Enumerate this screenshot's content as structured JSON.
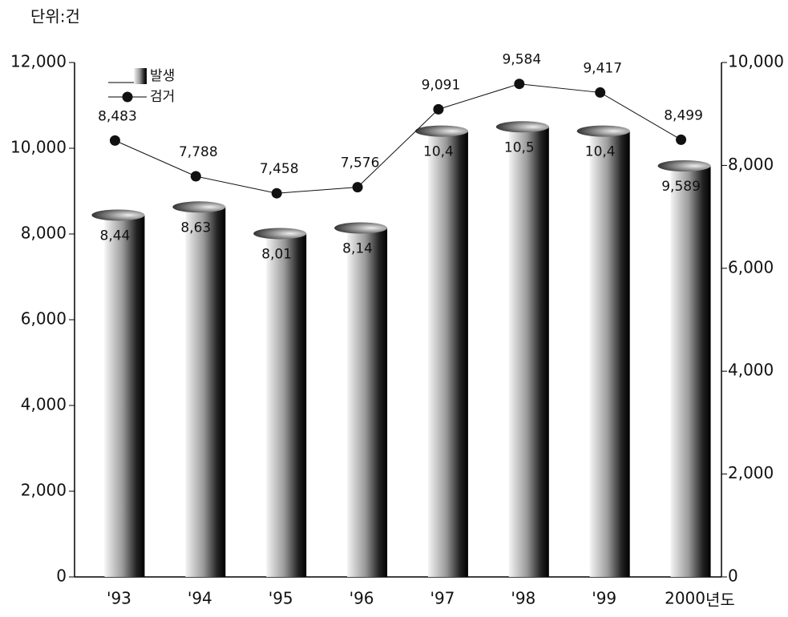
{
  "chart_data": {
    "type": "bar",
    "unit_label": "단위:건",
    "x_label": "년도",
    "categories": [
      "'93",
      "'94",
      "'95",
      "'96",
      "'97",
      "'98",
      "'99",
      "2000"
    ],
    "series": [
      {
        "name": "발생",
        "type": "bar",
        "color": "#222222",
        "values": [
          8440,
          8630,
          8010,
          8140,
          10400,
          10500,
          10400,
          9589
        ],
        "value_labels": [
          "8,44",
          "8,63",
          "8,01",
          "8,14",
          "10,4",
          "10,5",
          "10,4",
          "9,589"
        ]
      },
      {
        "name": "검거",
        "type": "line",
        "axis": "y2",
        "color": "#111111",
        "values": [
          8483,
          7788,
          7458,
          7576,
          9091,
          9584,
          9417,
          8499
        ],
        "value_labels": [
          "8,483",
          "7,788",
          "7,458",
          "7,576",
          "9,091",
          "9,584",
          "9,417",
          "8,499"
        ]
      }
    ],
    "ylim": [
      0,
      12000
    ],
    "yticks": [
      0,
      {
        "value": 2000,
        "label": "2,000"
      },
      {
        "value": 4000,
        "label": "4,000"
      },
      {
        "value": 6000,
        "label": "6,000"
      },
      {
        "value": 8000,
        "label": "8,000"
      },
      {
        "value": 10000,
        "label": "10,000"
      },
      {
        "value": 12000,
        "label": "12,000"
      }
    ],
    "y2lim": [
      0,
      10000
    ],
    "y2ticks": [
      0,
      {
        "value": 2000,
        "label": "2,000"
      },
      {
        "value": 4000,
        "label": "4,000"
      },
      {
        "value": 6000,
        "label": "6,000"
      },
      {
        "value": 8000,
        "label": "8,000"
      },
      {
        "value": 10000,
        "label": "10,000"
      }
    ],
    "grid": false,
    "legend": "upper left"
  }
}
